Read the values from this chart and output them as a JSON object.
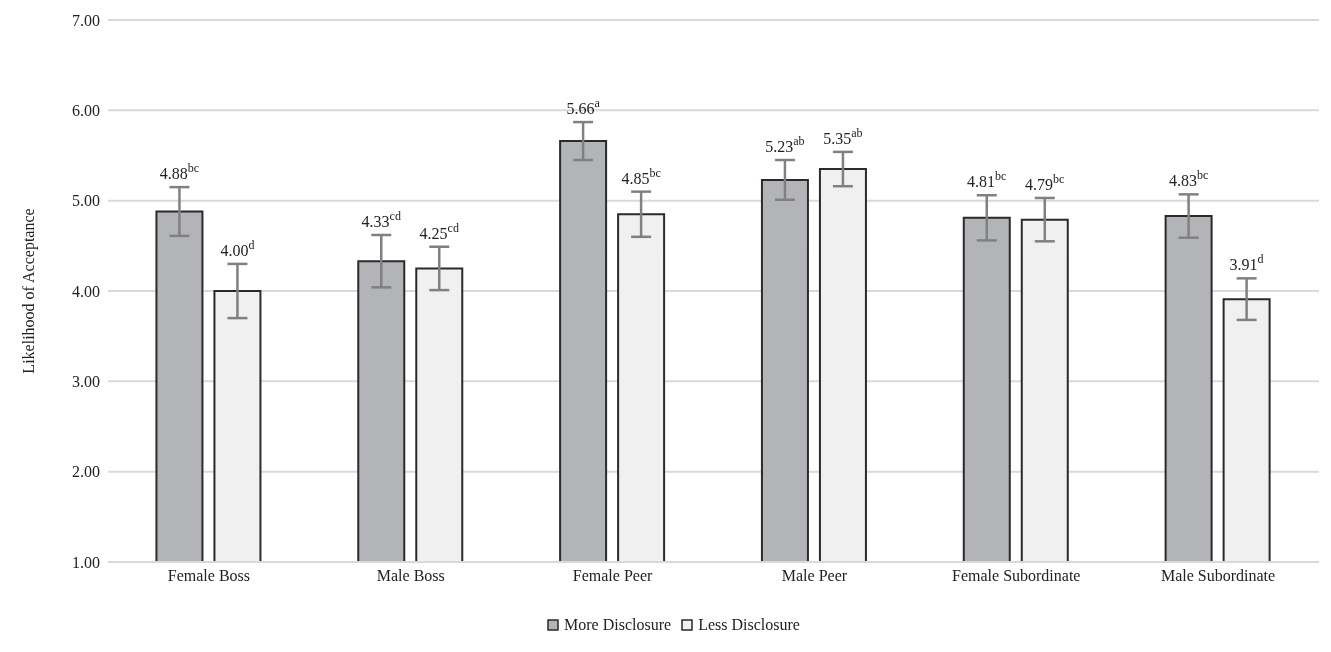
{
  "chart_data": {
    "type": "bar",
    "ylabel": "Likelihood of Acceptance",
    "categories": [
      "Female Boss",
      "Male Boss",
      "Female Peer",
      "Male Peer",
      "Female Subordinate",
      "Male Subordinate"
    ],
    "series": [
      {
        "name": "More Disclosure",
        "color": "#b3b4b8",
        "values": [
          4.88,
          4.33,
          5.66,
          5.23,
          4.81,
          4.83
        ],
        "errors": [
          0.27,
          0.29,
          0.21,
          0.22,
          0.25,
          0.24
        ],
        "value_labels": [
          "4.88$^{bc}$",
          "4.33$^{cd}$",
          "5.66$^{a}$",
          "5.23$^{ab}$",
          "4.81$^{bc}$",
          "4.83$^{bc}$"
        ]
      },
      {
        "name": "Less Disclosure",
        "color": "#f0f0f0",
        "values": [
          4.0,
          4.25,
          4.85,
          5.35,
          4.79,
          3.91
        ],
        "errors": [
          0.3,
          0.24,
          0.25,
          0.19,
          0.24,
          0.23
        ],
        "value_labels": [
          "4.00$^{d}$",
          "4.25$^{cd}$",
          "4.85$^{bc}$",
          "5.35$^{ab}$",
          "4.79$^{bc}$",
          "3.91$^{d}$"
        ]
      }
    ],
    "ylim": [
      1,
      7
    ],
    "yticks": [
      {
        "value": 1,
        "label": "1.00"
      },
      {
        "value": 2,
        "label": "2.00"
      },
      {
        "value": 3,
        "label": "3.00"
      },
      {
        "value": 4,
        "label": "4.00"
      },
      {
        "value": 5,
        "label": "5.00"
      },
      {
        "value": 6,
        "label": "6.00"
      },
      {
        "value": 7,
        "label": "7.00"
      }
    ],
    "grid": "y",
    "legend": "bottom"
  }
}
